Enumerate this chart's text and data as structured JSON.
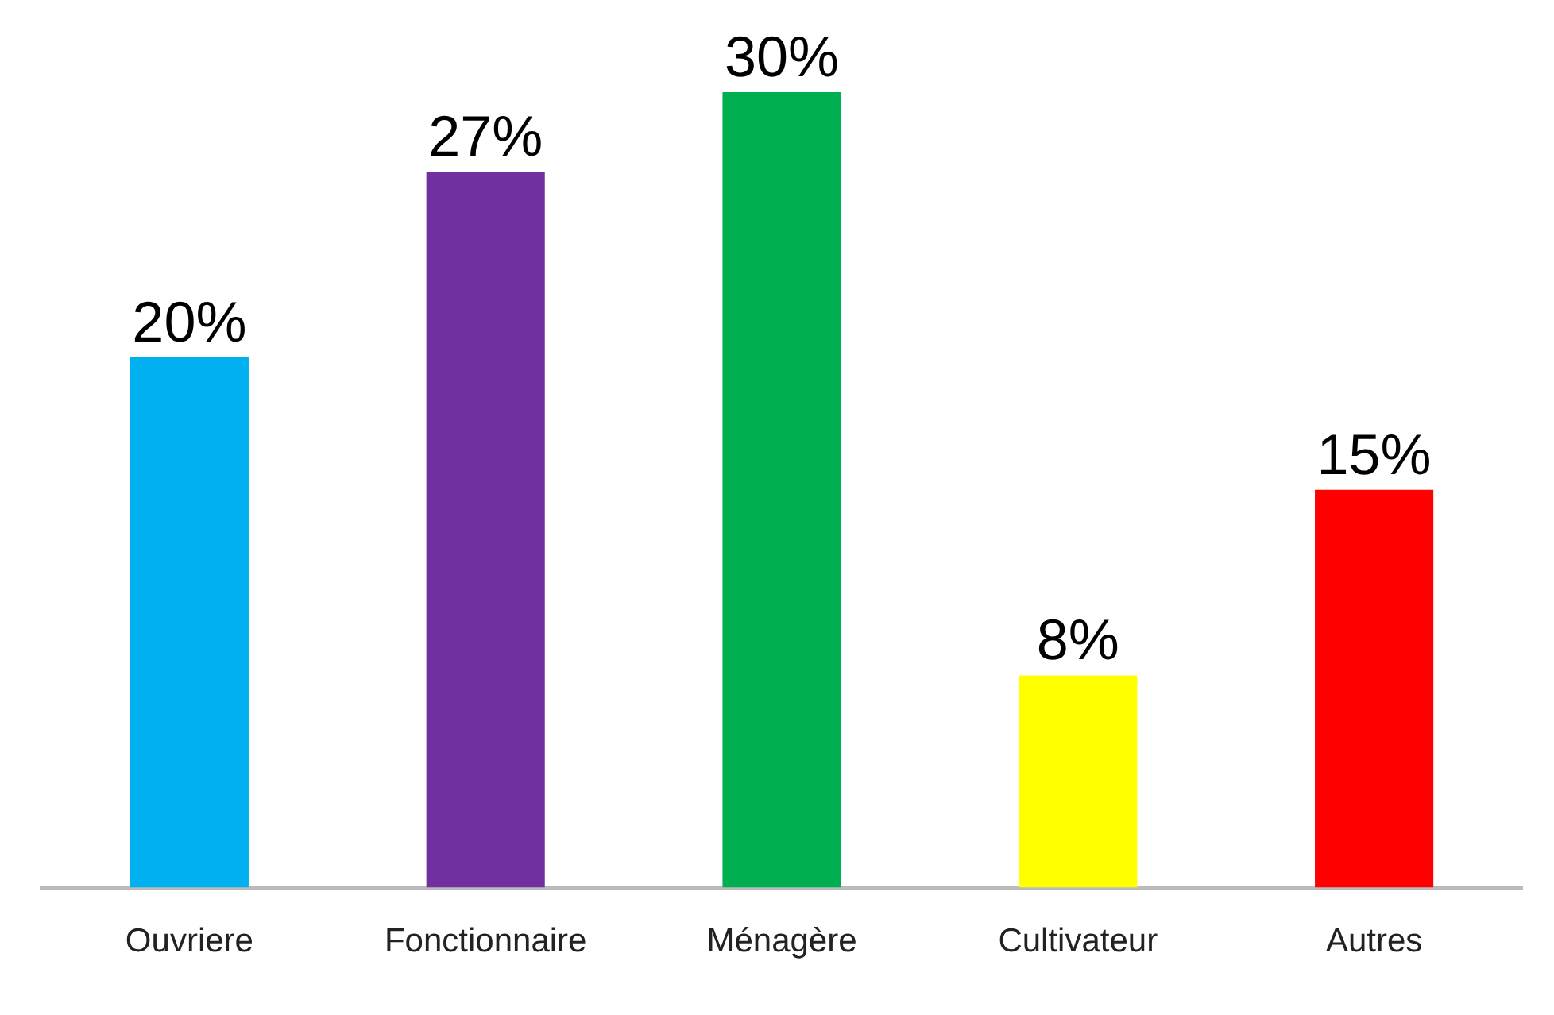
{
  "chart_data": {
    "type": "bar",
    "categories": [
      "Ouvriere",
      "Fonctionnaire",
      "Ménagère",
      "Cultivateur",
      "Autres"
    ],
    "values": [
      20,
      27,
      30,
      8,
      15
    ],
    "colors": [
      "#00b0f0",
      "#7030a0",
      "#00b050",
      "#ffff00",
      "#ff0000"
    ],
    "value_labels": [
      "20%",
      "27%",
      "30%",
      "8%",
      "15%"
    ],
    "grid": false,
    "legend": false
  }
}
